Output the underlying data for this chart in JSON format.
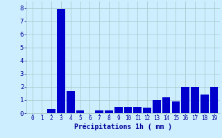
{
  "categories": [
    0,
    1,
    2,
    3,
    4,
    5,
    6,
    7,
    8,
    9,
    10,
    11,
    12,
    13,
    14,
    15,
    16,
    17,
    18,
    19
  ],
  "values": [
    0.0,
    0.0,
    0.3,
    7.9,
    1.7,
    0.2,
    0.0,
    0.2,
    0.2,
    0.45,
    0.45,
    0.45,
    0.4,
    1.0,
    1.2,
    0.9,
    2.0,
    2.0,
    1.4,
    2.0
  ],
  "bar_color": "#0000cc",
  "background_color": "#cceeff",
  "grid_color": "#aacccc",
  "xlabel": "Précipitations 1h ( mm )",
  "xlabel_color": "#000099",
  "tick_color": "#000099",
  "ylim": [
    0,
    8.5
  ],
  "yticks": [
    0,
    1,
    2,
    3,
    4,
    5,
    6,
    7,
    8
  ],
  "bar_width": 0.85
}
